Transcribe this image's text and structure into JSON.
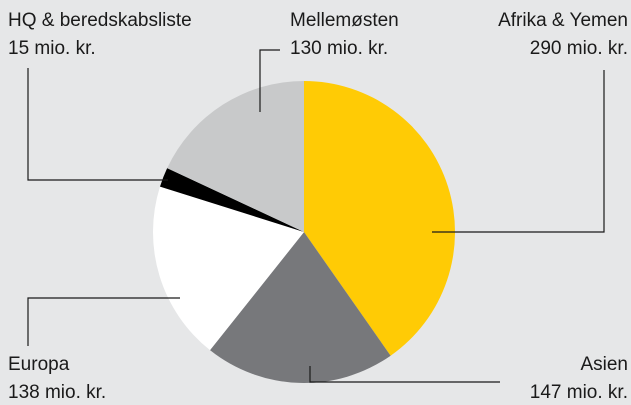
{
  "chart_data": {
    "type": "pie",
    "categories": [
      "Afrika & Yemen",
      "Asien",
      "Europa",
      "HQ & beredskabsliste",
      "Mellemøsten"
    ],
    "values": [
      290,
      147,
      138,
      15,
      130
    ],
    "value_labels": [
      "290 mio. kr.",
      "147 mio. kr.",
      "138 mio. kr.",
      "15 mio. kr.",
      "130 mio. kr."
    ],
    "colors": [
      "#ffcb05",
      "#77787b",
      "#ffffff",
      "#000000",
      "#c8c9ca"
    ]
  }
}
